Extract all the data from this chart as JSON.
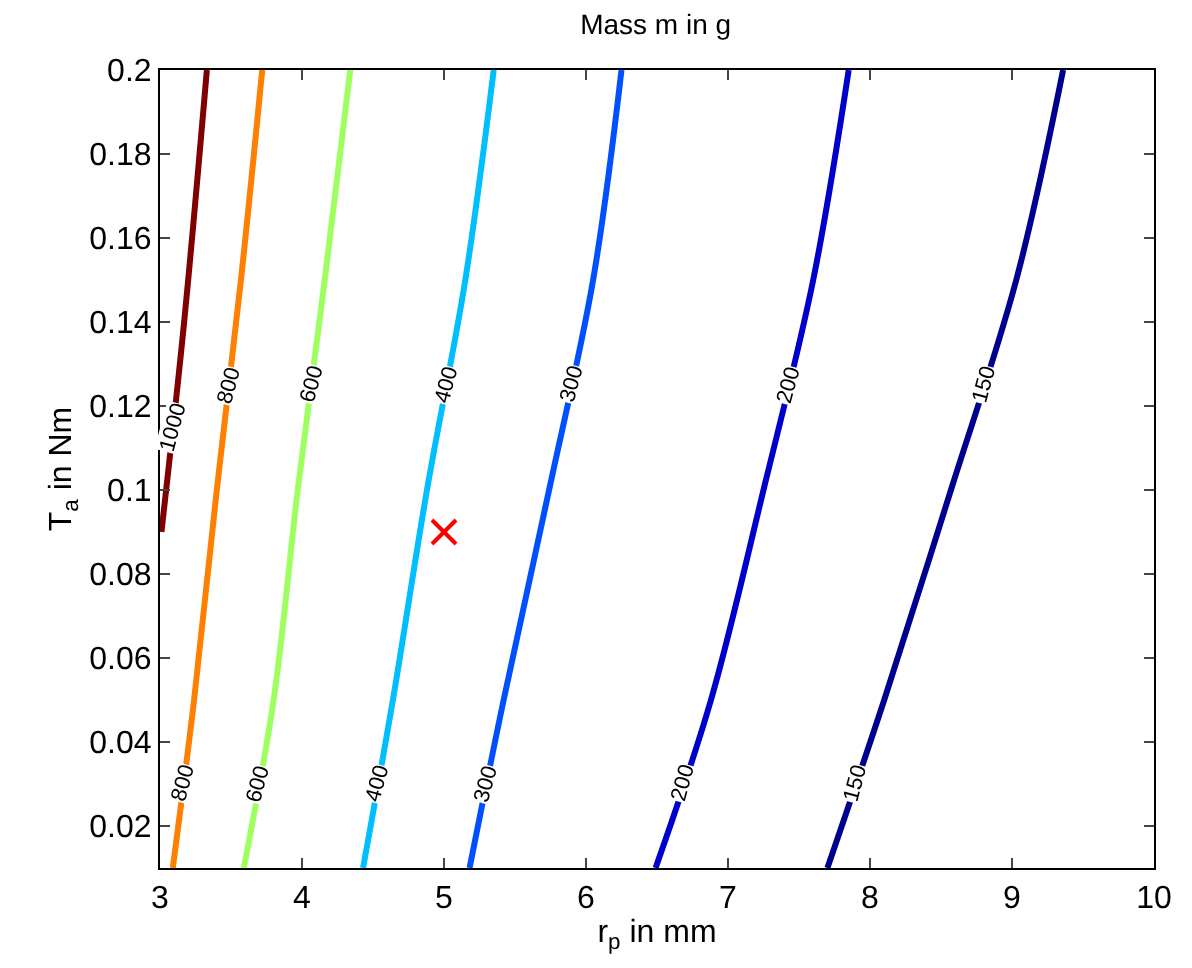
{
  "chart_data": {
    "type": "line",
    "title": "Mass m in g",
    "xlabel": "r$_{p}$ in mm",
    "ylabel": "T$_{a}$ in Nm",
    "xlim": [
      3,
      10
    ],
    "ylim": [
      0.01,
      0.2
    ],
    "xticks": [
      3,
      4,
      5,
      6,
      7,
      8,
      9,
      10
    ],
    "yticks": [
      0.02,
      0.04,
      0.06,
      0.08,
      0.1,
      0.12,
      0.14,
      0.16,
      0.18,
      0.2
    ],
    "marker": "none",
    "line_style": "solid",
    "series": [
      {
        "name": "1000",
        "color": "#800000",
        "x": [
          3.01,
          3.17,
          3.33
        ],
        "values": [
          0.09,
          0.14,
          0.2
        ]
      },
      {
        "name": "800",
        "color": "#ff7f00",
        "x": [
          3.09,
          3.24,
          3.4,
          3.57,
          3.72
        ],
        "values": [
          0.01,
          0.05,
          0.1,
          0.15,
          0.2
        ]
      },
      {
        "name": "600",
        "color": "#9fff60",
        "x": [
          3.59,
          3.8,
          3.97,
          4.16,
          4.34
        ],
        "values": [
          0.01,
          0.05,
          0.1,
          0.15,
          0.2
        ]
      },
      {
        "name": "400",
        "color": "#00bfff",
        "x": [
          4.43,
          4.64,
          4.88,
          5.15,
          5.35
        ],
        "values": [
          0.01,
          0.05,
          0.1,
          0.15,
          0.2
        ]
      },
      {
        "name": "300",
        "color": "#0050ff",
        "x": [
          5.18,
          5.42,
          5.74,
          6.05,
          6.25
        ],
        "values": [
          0.01,
          0.05,
          0.1,
          0.15,
          0.2
        ]
      },
      {
        "name": "200",
        "color": "#0000cc",
        "x": [
          6.49,
          6.88,
          7.25,
          7.6,
          7.85
        ],
        "values": [
          0.01,
          0.05,
          0.1,
          0.15,
          0.2
        ]
      },
      {
        "name": "150",
        "color": "#000090",
        "x": [
          7.7,
          8.1,
          8.57,
          9.03,
          9.36
        ],
        "values": [
          0.01,
          0.05,
          0.1,
          0.15,
          0.2
        ]
      },
      {
        "type": "scatter",
        "marker": "cross",
        "color": "#ff0000",
        "x": [
          5
        ],
        "values": [
          0.09
        ]
      }
    ]
  }
}
